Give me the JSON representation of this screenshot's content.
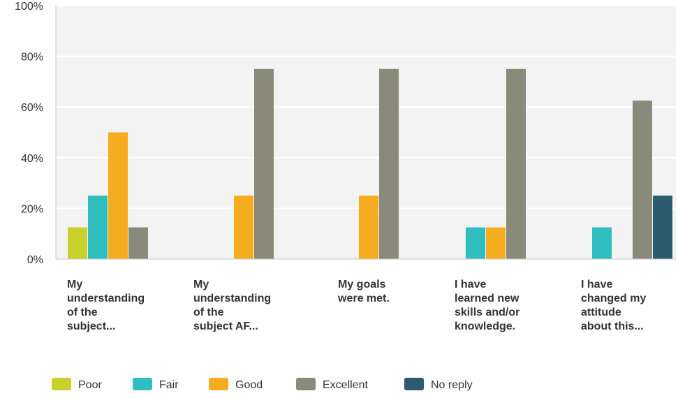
{
  "chart_data": {
    "type": "bar",
    "title": "",
    "xlabel": "",
    "ylabel": "",
    "ylim": [
      0,
      100
    ],
    "y_ticks": [
      "0%",
      "20%",
      "40%",
      "60%",
      "80%",
      "100%"
    ],
    "y_tick_values": [
      0,
      20,
      40,
      60,
      80,
      100
    ],
    "grid": "horizontal",
    "legend_position": "bottom",
    "categories": [
      [
        "My",
        "understanding",
        "of the",
        "subject..."
      ],
      [
        "My",
        "understanding",
        "of the",
        "subject AF..."
      ],
      [
        "My goals",
        "were met."
      ],
      [
        "I have",
        "learned new",
        "skills and/or",
        "knowledge."
      ],
      [
        "I have",
        "changed my",
        "attitude",
        "about this..."
      ]
    ],
    "series": [
      {
        "name": "Poor",
        "color": "#c9d12c",
        "values": [
          12.5,
          0,
          0,
          0,
          0
        ]
      },
      {
        "name": "Fair",
        "color": "#2fbdbd",
        "values": [
          25,
          0,
          0,
          12.5,
          12.5
        ]
      },
      {
        "name": "Good",
        "color": "#f5ad1f",
        "values": [
          50,
          25,
          25,
          12.5,
          0
        ]
      },
      {
        "name": "Excellent",
        "color": "#8a8a7a",
        "values": [
          12.5,
          75,
          75,
          75,
          62.5
        ]
      },
      {
        "name": "No reply",
        "color": "#2c5d6e",
        "values": [
          0,
          0,
          0,
          0,
          25
        ]
      }
    ]
  }
}
